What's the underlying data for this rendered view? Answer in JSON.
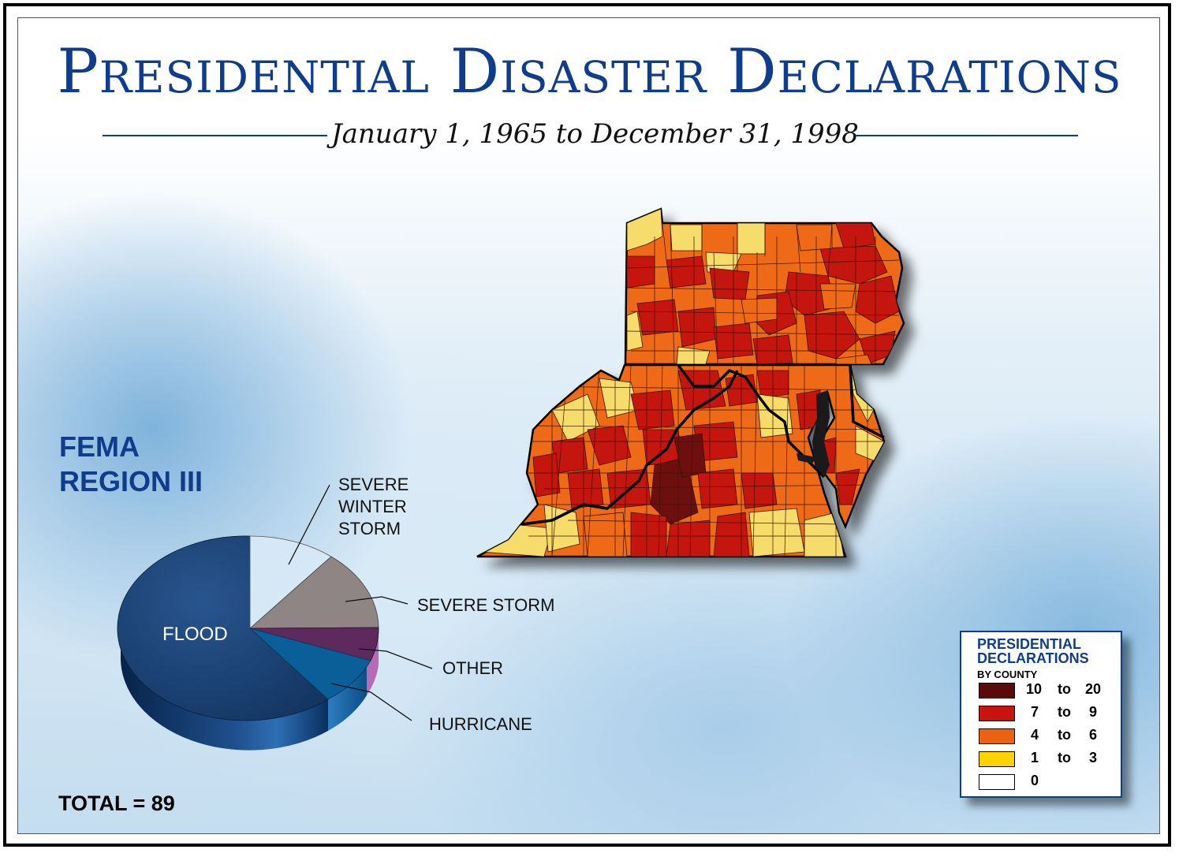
{
  "header": {
    "title": "Presidential Disaster Declarations",
    "subtitle": "January 1, 1965 to December 31, 1998"
  },
  "region": {
    "line1": "FEMA",
    "line2": "REGION III"
  },
  "pie": {
    "total_label": "TOTAL = 89",
    "labels": {
      "flood": "FLOOD",
      "severe_winter_storm": [
        "SEVERE",
        "WINTER",
        "STORM"
      ],
      "severe_storm": "SEVERE STORM",
      "other": "OTHER",
      "hurricane": "HURRICANE"
    },
    "colors": {
      "flood": "#1b3f73",
      "severe_winter_storm": "#d6e8f5",
      "severe_storm": "#8f8585",
      "other": "#5e2a5e",
      "hurricane": "#0b5f98"
    }
  },
  "legend": {
    "title_line1": "PRESIDENTIAL",
    "title_line2": "DECLARATIONS",
    "subtitle": "BY COUNTY",
    "items": [
      {
        "from": "10",
        "to_word": "to",
        "to": "20",
        "color": "#5a0a0a"
      },
      {
        "from": "7",
        "to_word": "to",
        "to": "9",
        "color": "#c8130e"
      },
      {
        "from": "4",
        "to_word": "to",
        "to": "6",
        "color": "#e8620f"
      },
      {
        "from": "1",
        "to_word": "to",
        "to": "3",
        "color": "#ffd200"
      },
      {
        "from": "0",
        "to_word": "",
        "to": "",
        "color": "#ffffff"
      }
    ]
  },
  "map_colors": {
    "dark": "#6e0f0f",
    "red": "#c4150f",
    "orange": "#ee6a17",
    "yellow": "#f6dc6a"
  }
}
